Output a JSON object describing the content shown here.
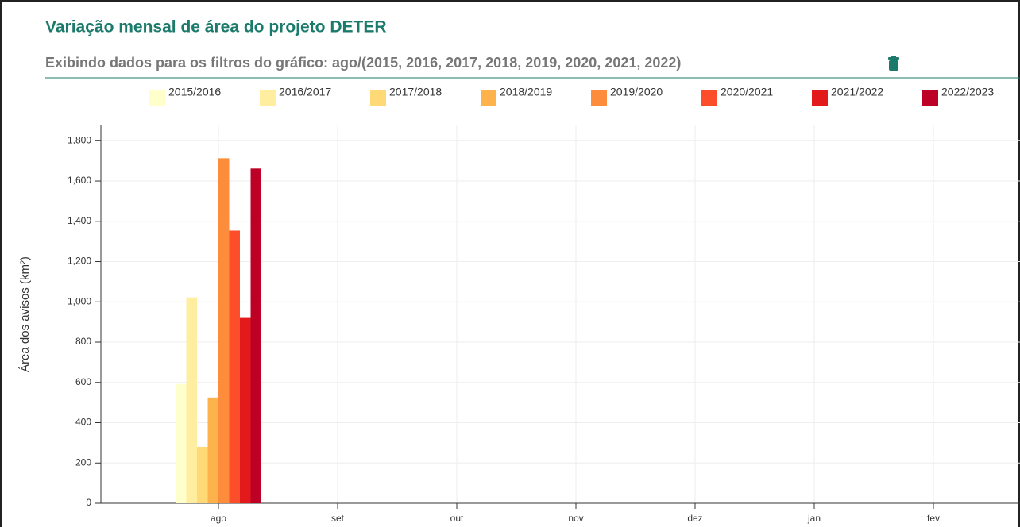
{
  "chart_data": {
    "type": "bar",
    "title": "Variação mensal de área do projeto DETER",
    "subtitle": "Exibindo dados para os filtros do gráfico: ago/(2015, 2016, 2017, 2018, 2019, 2020, 2021, 2022)",
    "y_label": "Área dos avisos (km²)",
    "categories": [
      "ago",
      "set",
      "out",
      "nov",
      "dez",
      "jan",
      "fev"
    ],
    "series": [
      {
        "name": "2015/2016",
        "color": "#ffffcc",
        "values": [
          592,
          null,
          null,
          null,
          null,
          null,
          null
        ]
      },
      {
        "name": "2016/2017",
        "color": "#ffeda0",
        "values": [
          1022,
          null,
          null,
          null,
          null,
          null,
          null
        ]
      },
      {
        "name": "2017/2018",
        "color": "#fed976",
        "values": [
          280,
          null,
          null,
          null,
          null,
          null,
          null
        ]
      },
      {
        "name": "2018/2019",
        "color": "#feb24c",
        "values": [
          525,
          null,
          null,
          null,
          null,
          null,
          null
        ]
      },
      {
        "name": "2019/2020",
        "color": "#fd8d3c",
        "values": [
          1713,
          null,
          null,
          null,
          null,
          null,
          null
        ]
      },
      {
        "name": "2020/2021",
        "color": "#fc4e2a",
        "values": [
          1354,
          null,
          null,
          null,
          null,
          null,
          null
        ]
      },
      {
        "name": "2021/2022",
        "color": "#e31a1c",
        "values": [
          920,
          null,
          null,
          null,
          null,
          null,
          null
        ]
      },
      {
        "name": "2022/2023",
        "color": "#bd0026",
        "values": [
          1662,
          null,
          null,
          null,
          null,
          null,
          null
        ]
      }
    ],
    "ylim": [
      0,
      1880
    ],
    "yticks": [
      0,
      200,
      400,
      600,
      800,
      {
        "value": 1000,
        "label": "1,000"
      },
      {
        "value": 1200,
        "label": "1,200"
      },
      {
        "value": 1400,
        "label": "1,400"
      },
      {
        "value": 1600,
        "label": "1,600"
      },
      {
        "value": 1800,
        "label": "1,800"
      }
    ],
    "grid": true,
    "legend": "top"
  }
}
